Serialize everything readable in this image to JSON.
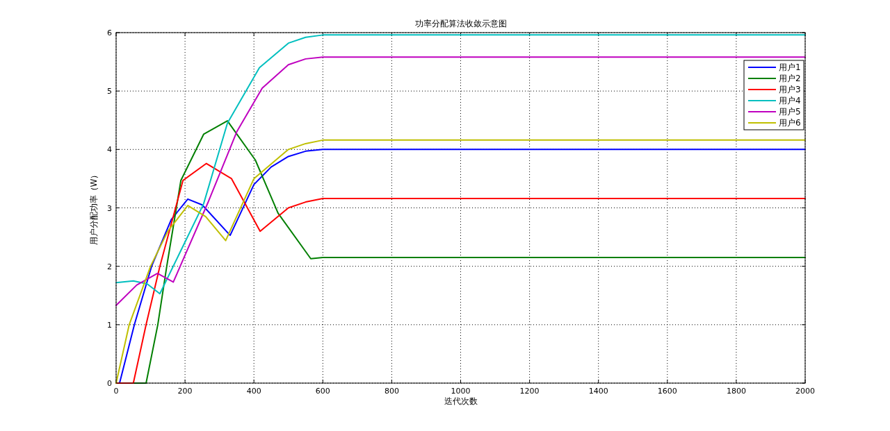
{
  "chart_data": {
    "type": "line",
    "title": "功率分配算法收敛示意图",
    "xlabel": "迭代次数",
    "ylabel": "用户分配功率（W）",
    "xlim": [
      0,
      2000
    ],
    "xticks": [
      0,
      200,
      400,
      600,
      800,
      1000,
      1200,
      1400,
      1600,
      1800,
      2000
    ],
    "ylim": [
      0,
      6
    ],
    "yticks": [
      0,
      1,
      2,
      3,
      4,
      5,
      6
    ],
    "grid": true,
    "legend": "top right",
    "line_style": "solid",
    "marker": "none",
    "series": [
      {
        "name": "用户1",
        "color": "#0000ff",
        "x": [
          10,
          53,
          103,
          160,
          208,
          250,
          331,
          400,
          450,
          500,
          550,
          600,
          2000
        ],
        "values": [
          0,
          1,
          2,
          2.8,
          3.15,
          3.05,
          2.53,
          3.4,
          3.7,
          3.88,
          3.97,
          4.0,
          4.0
        ]
      },
      {
        "name": "用户2",
        "color": "#007f00",
        "x": [
          0,
          87,
          121,
          147,
          188,
          254,
          323,
          404,
          470,
          565,
          600,
          2000
        ],
        "values": [
          0,
          0,
          1,
          2,
          3.47,
          4.26,
          4.49,
          3.82,
          2.91,
          2.13,
          2.15,
          2.15
        ]
      },
      {
        "name": "用户3",
        "color": "#ff0000",
        "x": [
          0,
          50,
          87,
          127,
          194,
          262,
          335,
          418,
          500,
          550,
          600,
          2000
        ],
        "values": [
          0,
          0,
          1,
          2,
          3.47,
          3.76,
          3.5,
          2.6,
          3.0,
          3.1,
          3.16,
          3.16
        ]
      },
      {
        "name": "用户4",
        "color": "#00bfbf",
        "x": [
          0,
          50,
          90,
          127,
          254,
          323,
          416,
          500,
          550,
          600,
          2000
        ],
        "values": [
          1.72,
          1.75,
          1.7,
          1.53,
          3.07,
          4.45,
          5.4,
          5.82,
          5.92,
          5.96,
          5.96
        ]
      },
      {
        "name": "用户5",
        "color": "#bf00bf",
        "x": [
          0,
          60,
          120,
          166,
          268,
          350,
          424,
          500,
          550,
          600,
          2000
        ],
        "values": [
          1.33,
          1.68,
          1.88,
          1.73,
          3.11,
          4.3,
          5.05,
          5.45,
          5.55,
          5.58,
          5.58
        ]
      },
      {
        "name": "用户6",
        "color": "#bfbf00",
        "x": [
          0,
          38,
          100,
          150,
          208,
          260,
          318,
          400,
          500,
          550,
          600,
          2000
        ],
        "values": [
          0,
          1,
          2,
          2.6,
          3.04,
          2.85,
          2.44,
          3.5,
          4.0,
          4.1,
          4.16,
          4.16
        ]
      }
    ]
  }
}
